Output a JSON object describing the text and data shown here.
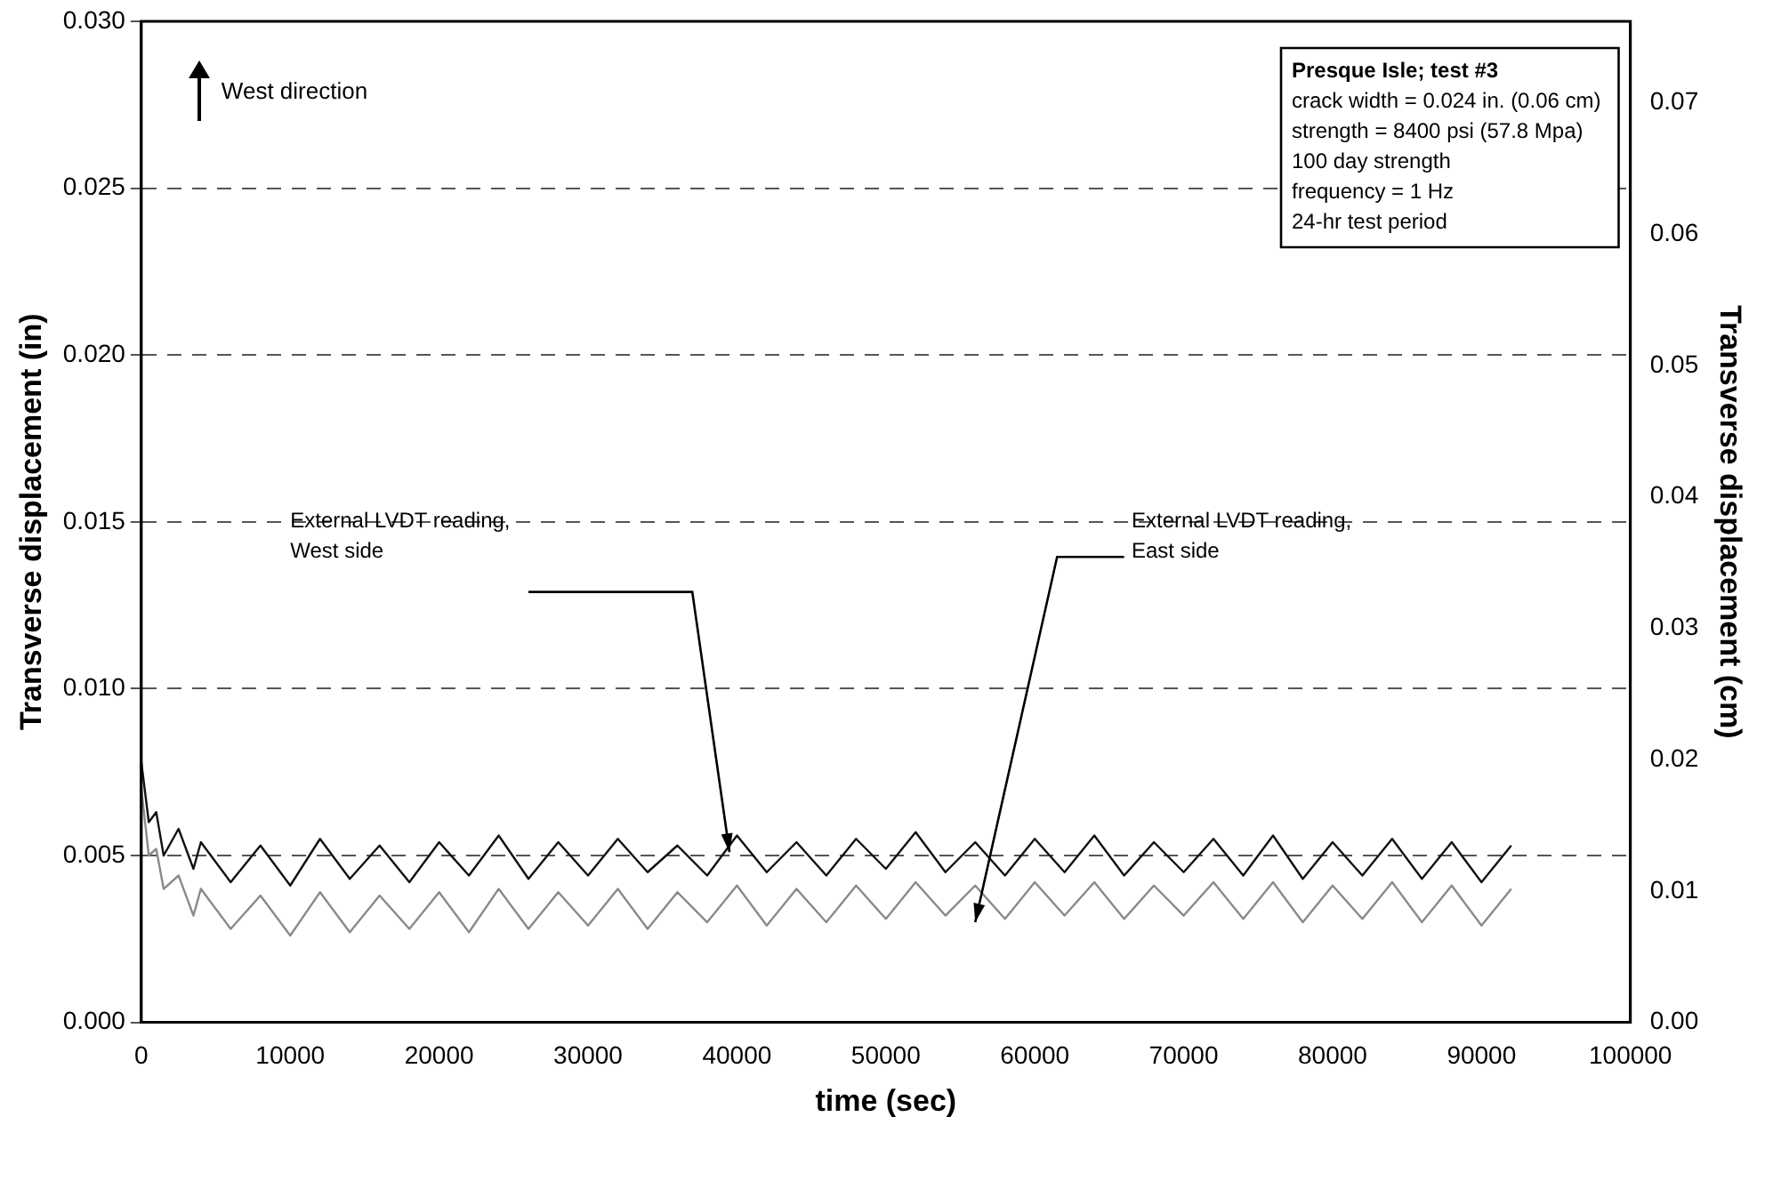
{
  "chart_data": {
    "type": "line",
    "xlabel": "time (sec)",
    "ylabel": "Transverse displacement (in)",
    "y2label": "Transverse displacement (cm)",
    "xlim": [
      0,
      100000
    ],
    "xticks": [
      0,
      10000,
      20000,
      30000,
      40000,
      50000,
      60000,
      70000,
      80000,
      90000,
      100000
    ],
    "ylim": [
      0,
      0.03
    ],
    "yticks": [
      {
        "value": 0,
        "label": "0.000"
      },
      0.005,
      {
        "value": 0.01,
        "label": "0.010"
      },
      0.015,
      {
        "value": 0.02,
        "label": "0.020"
      },
      0.025,
      {
        "value": 0.03,
        "label": "0.030"
      }
    ],
    "y2lim": [
      0,
      0.0762
    ],
    "y2ticks": [
      {
        "value": 0,
        "label": "0.00"
      },
      0.01,
      0.02,
      0.03,
      0.04,
      0.05,
      0.06,
      0.07
    ],
    "grid": "y",
    "legend": false,
    "marker": "none",
    "line_style": "solid",
    "series": [
      {
        "color": "#111111",
        "x": [
          0,
          500,
          1000,
          1500,
          2500,
          3500,
          4000,
          6000,
          8000,
          10000,
          12000,
          14000,
          16000,
          18000,
          20000,
          22000,
          24000,
          26000,
          28000,
          30000,
          32000,
          34000,
          36000,
          38000,
          40000,
          42000,
          44000,
          46000,
          48000,
          50000,
          52000,
          54000,
          56000,
          58000,
          60000,
          62000,
          64000,
          66000,
          68000,
          70000,
          72000,
          74000,
          76000,
          78000,
          80000,
          82000,
          84000,
          86000,
          88000,
          90000,
          92000
        ],
        "values": [
          0.0078,
          0.006,
          0.0063,
          0.005,
          0.0058,
          0.0046,
          0.0054,
          0.0042,
          0.0053,
          0.0041,
          0.0055,
          0.0043,
          0.0053,
          0.0042,
          0.0054,
          0.0044,
          0.0056,
          0.0043,
          0.0054,
          0.0044,
          0.0055,
          0.0045,
          0.0053,
          0.0044,
          0.0056,
          0.0045,
          0.0054,
          0.0044,
          0.0055,
          0.0046,
          0.0057,
          0.0045,
          0.0054,
          0.0044,
          0.0055,
          0.0045,
          0.0056,
          0.0044,
          0.0054,
          0.0045,
          0.0055,
          0.0044,
          0.0056,
          0.0043,
          0.0054,
          0.0044,
          0.0055,
          0.0043,
          0.0054,
          0.0042,
          0.0053
        ]
      },
      {
        "color": "#8a8a8a",
        "x": [
          0,
          500,
          1000,
          1500,
          2500,
          3500,
          4000,
          6000,
          8000,
          10000,
          12000,
          14000,
          16000,
          18000,
          20000,
          22000,
          24000,
          26000,
          28000,
          30000,
          32000,
          34000,
          36000,
          38000,
          40000,
          42000,
          44000,
          46000,
          48000,
          50000,
          52000,
          54000,
          56000,
          58000,
          60000,
          62000,
          64000,
          66000,
          68000,
          70000,
          72000,
          74000,
          76000,
          78000,
          80000,
          82000,
          84000,
          86000,
          88000,
          90000,
          92000
        ],
        "values": [
          0.007,
          0.005,
          0.0052,
          0.004,
          0.0044,
          0.0032,
          0.004,
          0.0028,
          0.0038,
          0.0026,
          0.0039,
          0.0027,
          0.0038,
          0.0028,
          0.0039,
          0.0027,
          0.004,
          0.0028,
          0.0039,
          0.0029,
          0.004,
          0.0028,
          0.0039,
          0.003,
          0.0041,
          0.0029,
          0.004,
          0.003,
          0.0041,
          0.0031,
          0.0042,
          0.0032,
          0.0041,
          0.0031,
          0.0042,
          0.0032,
          0.0042,
          0.0031,
          0.0041,
          0.0032,
          0.0042,
          0.0031,
          0.0042,
          0.003,
          0.0041,
          0.0031,
          0.0042,
          0.003,
          0.0041,
          0.0029,
          0.004
        ]
      }
    ],
    "annotations": [
      "West direction",
      "External LVDT reading,\nWest side",
      "External LVDT reading,\nEast side",
      "Presque Isle; test #3",
      "crack width = 0.024 in. (0.06 cm)",
      "strength = 8400 psi (57.8 Mpa)",
      "100 day strength",
      "frequency = 1 Hz",
      "24-hr test period"
    ]
  }
}
